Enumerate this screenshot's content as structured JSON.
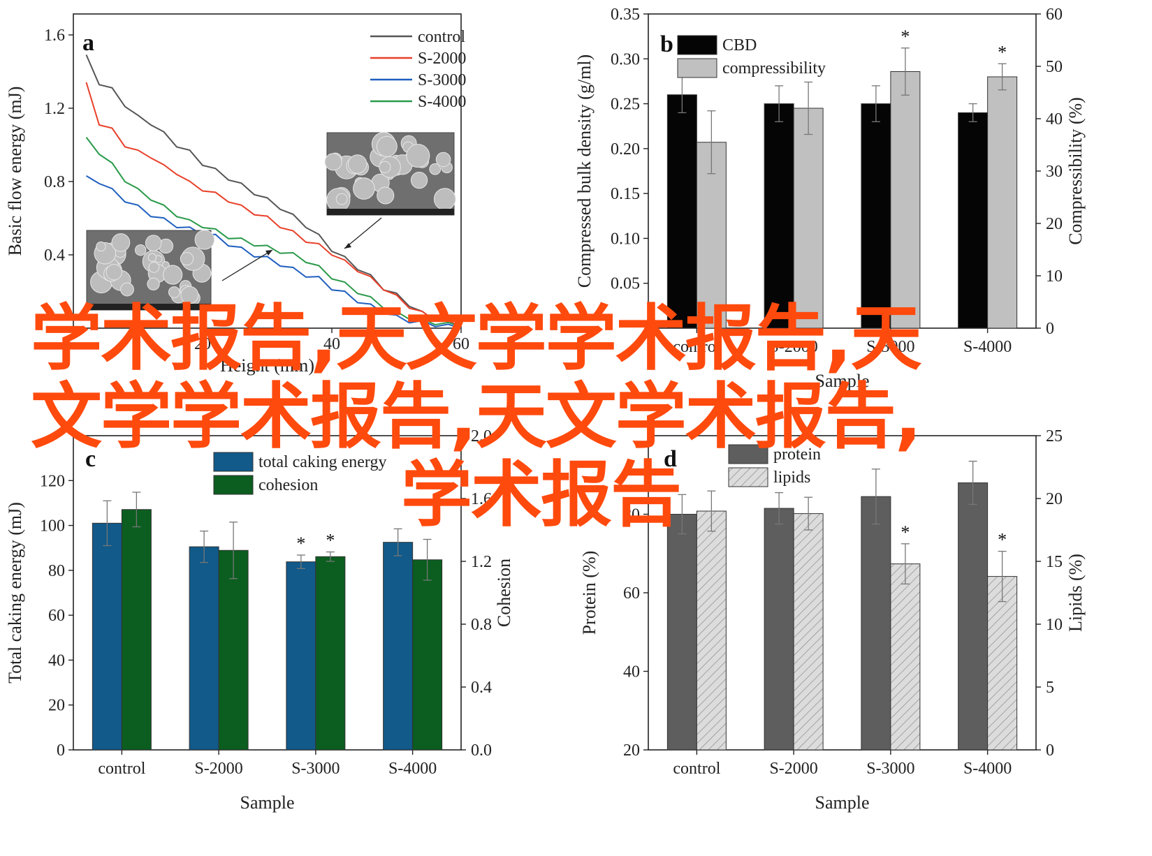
{
  "watermark": {
    "line1": "学术报告,天文学学术报告,天",
    "line2": "文学学术报告,天文学术报告,",
    "line3": "学术报告"
  },
  "chart_data": [
    {
      "panel": "a",
      "type": "line",
      "xlabel": "Height (mm)",
      "ylabel": "Basic flow energy (mJ)",
      "xlim": [
        0,
        60
      ],
      "ylim": [
        0,
        1.6
      ],
      "yticks": [
        0.4,
        0.8,
        1.2,
        1.6
      ],
      "xticks": [
        20,
        40,
        60
      ],
      "legend_position": "top-right",
      "series": [
        {
          "name": "control",
          "color": "#555555",
          "x": [
            2,
            4,
            6,
            8,
            10,
            12,
            14,
            16,
            18,
            20,
            22,
            24,
            26,
            28,
            30,
            32,
            34,
            36,
            38,
            40,
            42,
            44,
            46,
            48,
            50,
            52,
            54,
            56,
            58,
            60
          ],
          "y": [
            1.48,
            1.34,
            1.3,
            1.22,
            1.15,
            1.12,
            1.06,
            1.0,
            0.96,
            0.9,
            0.86,
            0.82,
            0.78,
            0.74,
            0.7,
            0.66,
            0.61,
            0.56,
            0.5,
            0.43,
            0.38,
            0.33,
            0.28,
            0.22,
            0.18,
            0.13,
            0.08,
            0.05,
            0.03,
            0.02
          ]
        },
        {
          "name": "S-2000",
          "color": "#e8402a",
          "x": [
            2,
            4,
            6,
            8,
            10,
            12,
            14,
            16,
            18,
            20,
            22,
            24,
            26,
            28,
            30,
            32,
            34,
            36,
            38,
            40,
            42,
            44,
            46,
            48,
            50,
            52,
            54,
            56,
            58,
            60
          ],
          "y": [
            1.33,
            1.12,
            1.08,
            1.0,
            0.96,
            0.94,
            0.88,
            0.85,
            0.79,
            0.76,
            0.73,
            0.7,
            0.66,
            0.63,
            0.6,
            0.56,
            0.52,
            0.48,
            0.45,
            0.41,
            0.36,
            0.32,
            0.27,
            0.22,
            0.17,
            0.12,
            0.08,
            0.05,
            0.03,
            0.02
          ]
        },
        {
          "name": "S-3000",
          "color": "#1f5fbf",
          "x": [
            2,
            4,
            6,
            8,
            10,
            12,
            14,
            16,
            18,
            20,
            22,
            24,
            26,
            28,
            30,
            32,
            34,
            36,
            38,
            40,
            42,
            44,
            46,
            48,
            50,
            52,
            54,
            56,
            58,
            60
          ],
          "y": [
            0.82,
            0.8,
            0.75,
            0.7,
            0.66,
            0.62,
            0.59,
            0.56,
            0.54,
            0.52,
            0.5,
            0.46,
            0.43,
            0.4,
            0.38,
            0.35,
            0.32,
            0.29,
            0.27,
            0.22,
            0.19,
            0.15,
            0.12,
            0.09,
            0.06,
            0.04,
            0.03,
            0.02,
            0.01,
            0.01
          ]
        },
        {
          "name": "S-4000",
          "color": "#2a9a4a",
          "x": [
            2,
            4,
            6,
            8,
            10,
            12,
            14,
            16,
            18,
            20,
            22,
            24,
            26,
            28,
            30,
            32,
            34,
            36,
            38,
            40,
            42,
            44,
            46,
            48,
            50,
            52,
            54,
            56,
            58,
            60
          ],
          "y": [
            1.03,
            0.96,
            0.89,
            0.81,
            0.75,
            0.71,
            0.66,
            0.62,
            0.58,
            0.56,
            0.53,
            0.5,
            0.48,
            0.46,
            0.44,
            0.42,
            0.4,
            0.37,
            0.33,
            0.28,
            0.24,
            0.2,
            0.16,
            0.12,
            0.08,
            0.06,
            0.04,
            0.03,
            0.02,
            0.02
          ]
        }
      ]
    },
    {
      "panel": "b",
      "type": "bar",
      "categories": [
        "control",
        "S-2000",
        "S-3000",
        "S-4000"
      ],
      "xlabel": "Sample",
      "ylabel": "Compressed bulk density (g/ml)",
      "ylabel_right": "Compressibility (%)",
      "ylim": [
        0,
        0.35
      ],
      "ylim_right": [
        0,
        60
      ],
      "yticks": [
        0.05,
        0.1,
        0.15,
        0.2,
        0.25,
        0.3,
        0.35
      ],
      "yticks_right": [
        0,
        10,
        20,
        30,
        40,
        50,
        60
      ],
      "legend_position": "top-left",
      "series": [
        {
          "name": "CBD",
          "axis": "left",
          "color": "#050505",
          "values": [
            0.26,
            0.25,
            0.25,
            0.24
          ],
          "err": [
            0.02,
            0.02,
            0.02,
            0.01
          ],
          "sig": [
            "",
            "",
            "",
            ""
          ]
        },
        {
          "name": "compressibility",
          "axis": "right",
          "color": "#c0c0c0",
          "values": [
            35.5,
            42,
            49,
            48
          ],
          "err": [
            6,
            5,
            4.5,
            2.5
          ],
          "sig": [
            "",
            "",
            "*",
            "*"
          ]
        }
      ]
    },
    {
      "panel": "c",
      "type": "bar",
      "categories": [
        "control",
        "S-2000",
        "S-3000",
        "S-4000"
      ],
      "xlabel": "Sample",
      "ylabel": "Total caking energy (mJ)",
      "ylabel_right": "Cohesion",
      "ylim": [
        0,
        140
      ],
      "ylim_right": [
        0,
        2.0
      ],
      "yticks": [
        0,
        20,
        40,
        60,
        80,
        100,
        120
      ],
      "yticks_right": [
        "0.0",
        "0.4",
        "0.8",
        "1.2",
        "1.6",
        "2.0"
      ],
      "legend_position": "top-center",
      "series": [
        {
          "name": "total caking energy",
          "axis": "left",
          "color": "#115a8a",
          "values": [
            101,
            90.5,
            83.8,
            92.5
          ],
          "err": [
            10,
            7,
            3,
            6
          ],
          "sig": [
            "",
            "",
            "*",
            ""
          ]
        },
        {
          "name": "cohesion",
          "axis": "right",
          "color": "#0b5e1f",
          "values": [
            1.53,
            1.27,
            1.23,
            1.21
          ],
          "err": [
            0.11,
            0.18,
            0.03,
            0.13
          ],
          "sig": [
            "",
            "",
            "*",
            ""
          ]
        }
      ]
    },
    {
      "panel": "d",
      "type": "bar",
      "categories": [
        "control",
        "S-2000",
        "S-3000",
        "S-4000"
      ],
      "xlabel": "Sample",
      "ylabel": "Protein (%)",
      "ylabel_right": "Lipids (%)",
      "ylim": [
        20,
        100
      ],
      "ylim_right": [
        0,
        25
      ],
      "yticks": [
        20,
        40,
        60,
        80
      ],
      "yticks_right": [
        0,
        5,
        10,
        15,
        20,
        25
      ],
      "legend_position": "top-left",
      "series": [
        {
          "name": "protein",
          "axis": "left",
          "color": "#5e5e5e",
          "values": [
            80,
            81.5,
            84.5,
            88
          ],
          "err": [
            5,
            4,
            7,
            5.5
          ],
          "sig": [
            "",
            "",
            "",
            ""
          ]
        },
        {
          "name": "lipids",
          "axis": "right",
          "color": "#d9d9d9",
          "pattern": "hatch",
          "values": [
            19,
            18.8,
            14.8,
            13.8
          ],
          "err": [
            1.6,
            1.3,
            1.6,
            2
          ],
          "sig": [
            "",
            "",
            "*",
            "*"
          ]
        }
      ]
    }
  ]
}
